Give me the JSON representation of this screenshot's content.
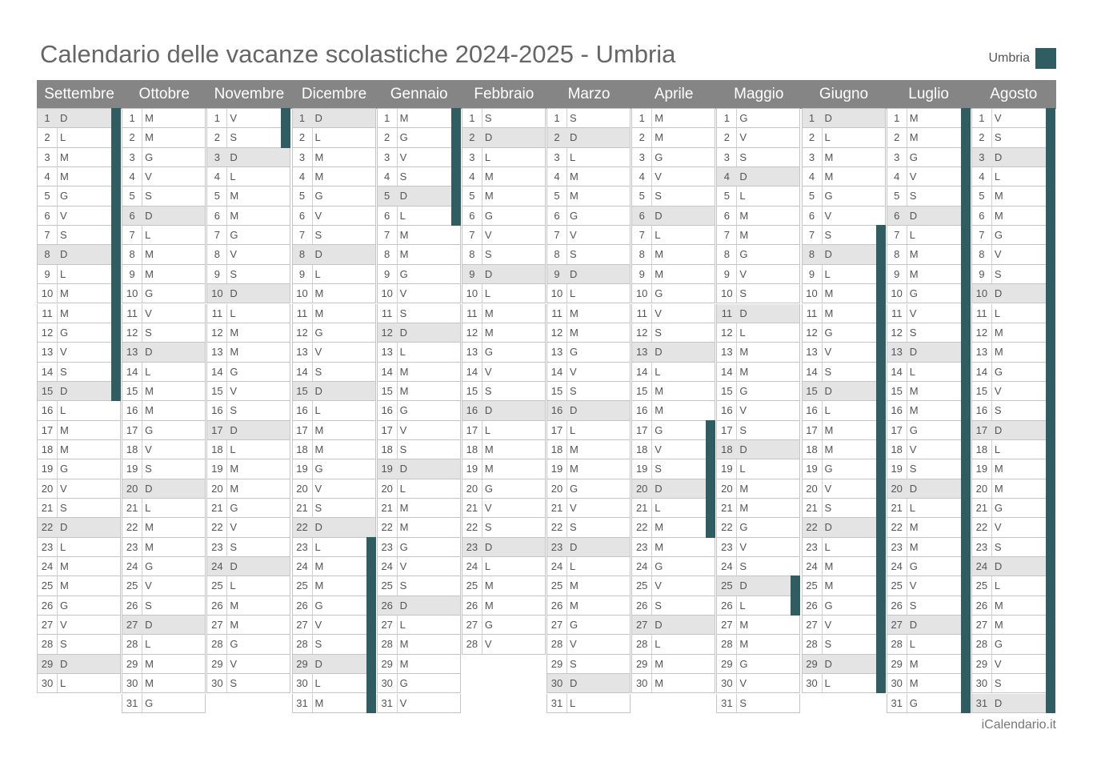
{
  "title": "Calendario delle vacanze scolastiche 2024-2025 - Umbria",
  "legend": {
    "label": "Umbria",
    "color": "#2f5d62"
  },
  "credit": "iCalendario.it",
  "months": [
    {
      "name": "Settembre",
      "days": 30,
      "start": 0,
      "holidays": [
        1,
        2,
        3,
        4,
        5,
        6,
        7,
        8,
        9,
        10,
        11,
        12,
        13,
        14,
        15
      ]
    },
    {
      "name": "Ottobre",
      "days": 31,
      "start": 2,
      "holidays": []
    },
    {
      "name": "Novembre",
      "days": 30,
      "start": 5,
      "holidays": [
        1,
        2
      ]
    },
    {
      "name": "Dicembre",
      "days": 31,
      "start": 0,
      "holidays": [
        23,
        24,
        25,
        26,
        27,
        28,
        29,
        30,
        31
      ]
    },
    {
      "name": "Gennaio",
      "days": 31,
      "start": 3,
      "holidays": [
        1,
        2,
        3,
        4,
        5,
        6
      ]
    },
    {
      "name": "Febbraio",
      "days": 28,
      "start": 6,
      "holidays": []
    },
    {
      "name": "Marzo",
      "days": 31,
      "start": 6,
      "holidays": []
    },
    {
      "name": "Aprile",
      "days": 30,
      "start": 2,
      "holidays": [
        17,
        18,
        19,
        20,
        21,
        22
      ]
    },
    {
      "name": "Maggio",
      "days": 31,
      "start": 4,
      "holidays": [
        25,
        26
      ]
    },
    {
      "name": "Giugno",
      "days": 30,
      "start": 0,
      "holidays": [
        7,
        8,
        9,
        10,
        11,
        12,
        13,
        14,
        15,
        16,
        17,
        18,
        19,
        20,
        21,
        22,
        23,
        24,
        25,
        26,
        27,
        28,
        29,
        30
      ]
    },
    {
      "name": "Luglio",
      "days": 31,
      "start": 2,
      "holidays": [
        1,
        2,
        3,
        4,
        5,
        6,
        7,
        8,
        9,
        10,
        11,
        12,
        13,
        14,
        15,
        16,
        17,
        18,
        19,
        20,
        21,
        22,
        23,
        24,
        25,
        26,
        27,
        28,
        29,
        30,
        31
      ]
    },
    {
      "name": "Agosto",
      "days": 31,
      "start": 5,
      "holidays": [
        1,
        2,
        3,
        4,
        5,
        6,
        7,
        8,
        9,
        10,
        11,
        12,
        13,
        14,
        15,
        16,
        17,
        18,
        19,
        20,
        21,
        22,
        23,
        24,
        25,
        26,
        27,
        28,
        29,
        30,
        31
      ]
    }
  ],
  "weekday_letters": [
    "D",
    "L",
    "M",
    "M",
    "G",
    "V",
    "S"
  ]
}
